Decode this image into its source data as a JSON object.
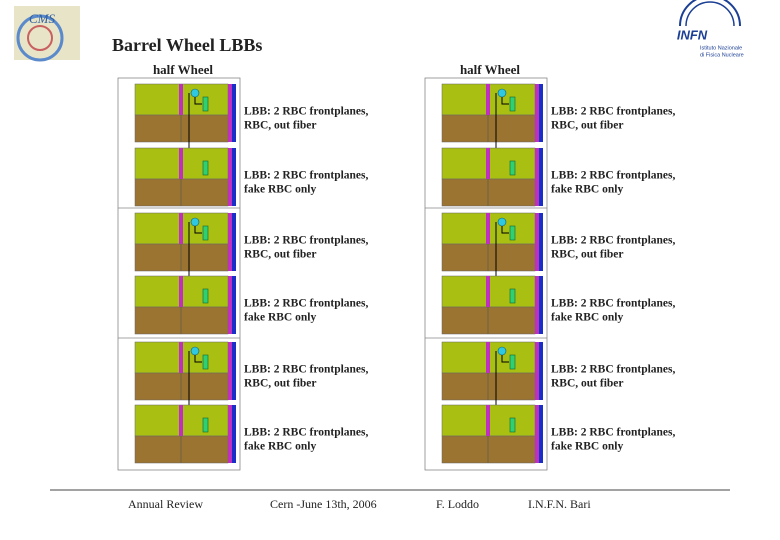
{
  "title": "Barrel Wheel LBBs",
  "logos": {
    "cms": "CMS",
    "infn": "INFN",
    "infn_subtitle": [
      "Istituto Nazionale",
      "di Fisica Nucleare"
    ]
  },
  "columns": [
    {
      "header": "half Wheel",
      "rows": [
        {
          "lines": [
            "LBB: 2 RBC frontplanes,",
            "RBC, out fiber"
          ]
        },
        {
          "lines": [
            "LBB: 2 RBC frontplanes,",
            "fake RBC only"
          ]
        },
        {
          "lines": [
            "LBB: 2 RBC frontplanes,",
            "RBC, out fiber"
          ]
        },
        {
          "lines": [
            "LBB: 2 RBC frontplanes,",
            "fake RBC only"
          ]
        },
        {
          "lines": [
            "LBB: 2 RBC frontplanes,",
            "RBC, out fiber"
          ]
        },
        {
          "lines": [
            "LBB: 2 RBC frontplanes,",
            "fake RBC only"
          ]
        }
      ]
    },
    {
      "header": "half Wheel",
      "rows": [
        {
          "lines": [
            "LBB: 2 RBC frontplanes,",
            "RBC, out fiber"
          ]
        },
        {
          "lines": [
            "LBB: 2 RBC frontplanes,",
            "fake RBC only"
          ]
        },
        {
          "lines": [
            "LBB: 2 RBC frontplanes,",
            "RBC, out fiber"
          ]
        },
        {
          "lines": [
            "LBB: 2 RBC frontplanes,",
            "fake RBC only"
          ]
        },
        {
          "lines": [
            "LBB: 2 RBC frontplanes,",
            "RBC, out fiber"
          ]
        },
        {
          "lines": [
            "LBB: 2 RBC frontplanes,",
            "fake RBC only"
          ]
        }
      ]
    }
  ],
  "footer": [
    "Annual Review",
    "Cern -June 13th, 2006",
    "F. Loddo",
    "I.N.F.N. Bari"
  ]
}
